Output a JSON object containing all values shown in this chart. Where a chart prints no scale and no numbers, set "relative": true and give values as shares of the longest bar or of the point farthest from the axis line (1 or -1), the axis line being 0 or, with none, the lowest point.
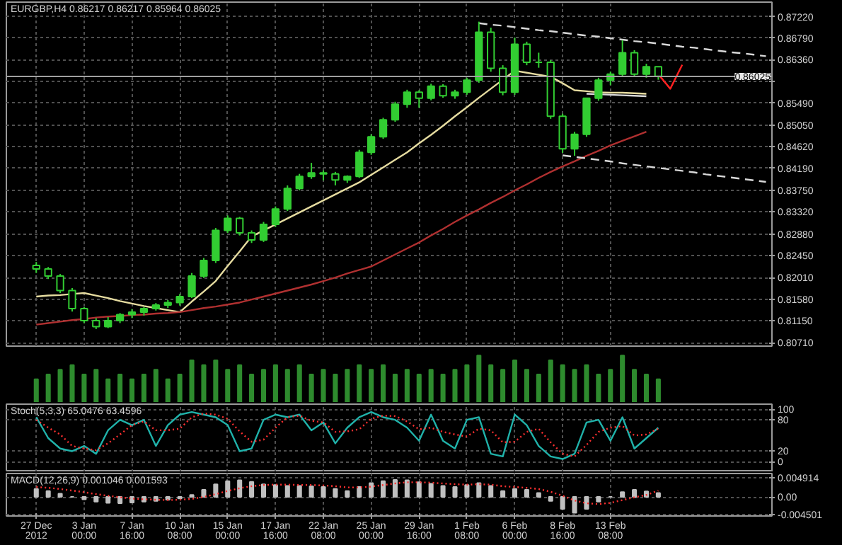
{
  "chart_data": [
    {
      "type": "candlestick",
      "title": "EURGBP,H4 0.86217 0.86217 0.85964 0.86025",
      "color": "#32cd32",
      "categories": [
        null,
        null,
        null,
        null,
        null,
        null,
        null,
        null,
        null,
        null,
        null,
        null,
        null,
        null,
        null,
        null,
        null,
        null,
        null,
        null,
        null,
        null,
        null,
        null,
        null,
        null,
        null,
        null,
        null,
        null,
        null,
        null,
        null,
        null,
        null,
        null,
        null,
        null,
        null,
        null,
        null,
        null,
        null,
        null,
        null,
        null,
        null,
        null,
        null,
        null,
        null,
        null,
        null,
        null,
        null,
        null,
        null,
        null,
        null,
        null,
        null,
        null
      ],
      "ohlc": [
        [
          0.8225,
          0.8232,
          0.821,
          0.8218
        ],
        [
          0.8218,
          0.8222,
          0.8198,
          0.8204
        ],
        [
          0.8204,
          0.8208,
          0.817,
          0.8175
        ],
        [
          0.8175,
          0.818,
          0.8133,
          0.8139
        ],
        [
          0.8139,
          0.8142,
          0.811,
          0.8115
        ],
        [
          0.8115,
          0.812,
          0.8098,
          0.8103
        ],
        [
          0.8103,
          0.8122,
          0.81,
          0.8115
        ],
        [
          0.8115,
          0.813,
          0.811,
          0.8127
        ],
        [
          0.8127,
          0.8138,
          0.812,
          0.8132
        ],
        [
          0.8132,
          0.8142,
          0.8125,
          0.8139
        ],
        [
          0.8139,
          0.815,
          0.8135,
          0.8146
        ],
        [
          0.8146,
          0.8156,
          0.814,
          0.8151
        ],
        [
          0.8151,
          0.8168,
          0.8145,
          0.8163
        ],
        [
          0.8163,
          0.821,
          0.816,
          0.8204
        ],
        [
          0.8204,
          0.824,
          0.82,
          0.8235
        ],
        [
          0.8235,
          0.83,
          0.823,
          0.8295
        ],
        [
          0.8295,
          0.8325,
          0.829,
          0.8319
        ],
        [
          0.8319,
          0.8322,
          0.8285,
          0.829
        ],
        [
          0.829,
          0.8295,
          0.827,
          0.8276
        ],
        [
          0.8276,
          0.8312,
          0.8272,
          0.8307
        ],
        [
          0.8307,
          0.8343,
          0.8302,
          0.8338
        ],
        [
          0.8338,
          0.8385,
          0.8334,
          0.8379
        ],
        [
          0.8379,
          0.8408,
          0.8375,
          0.8403
        ],
        [
          0.8403,
          0.843,
          0.8398,
          0.841
        ],
        [
          0.841,
          0.8415,
          0.8395,
          0.8408
        ],
        [
          0.8408,
          0.8412,
          0.8385,
          0.8396
        ],
        [
          0.8396,
          0.8405,
          0.839,
          0.8403
        ],
        [
          0.8403,
          0.8456,
          0.84,
          0.8451
        ],
        [
          0.8451,
          0.8487,
          0.8446,
          0.8482
        ],
        [
          0.8482,
          0.852,
          0.8478,
          0.8516
        ],
        [
          0.8516,
          0.8552,
          0.8512,
          0.8547
        ],
        [
          0.8547,
          0.8576,
          0.854,
          0.8571
        ],
        [
          0.8571,
          0.8575,
          0.854,
          0.8559
        ],
        [
          0.8559,
          0.8588,
          0.8555,
          0.8583
        ],
        [
          0.8583,
          0.8587,
          0.856,
          0.8564
        ],
        [
          0.8564,
          0.8576,
          0.8558,
          0.8571
        ],
        [
          0.8571,
          0.86,
          0.8566,
          0.8595
        ],
        [
          0.8595,
          0.8712,
          0.859,
          0.8691
        ],
        [
          0.8691,
          0.87,
          0.8612,
          0.8619
        ],
        [
          0.8619,
          0.8625,
          0.8565,
          0.8571
        ],
        [
          0.8571,
          0.868,
          0.8566,
          0.8667
        ],
        [
          0.8667,
          0.8672,
          0.8625,
          0.8631
        ],
        [
          0.8631,
          0.865,
          0.862,
          0.8631
        ],
        [
          0.8631,
          0.8635,
          0.8518,
          0.8523
        ],
        [
          0.8523,
          0.8528,
          0.845,
          0.8458
        ],
        [
          0.8458,
          0.8492,
          0.8444,
          0.8487
        ],
        [
          0.8487,
          0.856,
          0.8482,
          0.8559
        ],
        [
          0.8559,
          0.86,
          0.8554,
          0.8595
        ],
        [
          0.8595,
          0.8612,
          0.8585,
          0.8607
        ],
        [
          0.8607,
          0.8675,
          0.8602,
          0.865
        ],
        [
          0.865,
          0.8655,
          0.8603,
          0.8607
        ],
        [
          0.8607,
          0.8628,
          0.86,
          0.8622
        ],
        [
          0.8622,
          0.8622,
          0.8596,
          0.8603
        ],
        null,
        null,
        null,
        null,
        null,
        null,
        null,
        null,
        null
      ],
      "series": [
        {
          "type": "line",
          "color": "#e6dca0",
          "values": [
            0.8163,
            0.8165,
            0.8166,
            0.8168,
            0.817,
            0.8165,
            0.816,
            0.8154,
            0.8149,
            0.8144,
            0.814,
            0.8136,
            0.8132,
            0.8153,
            0.8173,
            0.8194,
            0.8224,
            0.8253,
            0.8283,
            0.8295,
            0.8307,
            0.8319,
            0.8331,
            0.8343,
            0.8355,
            0.8367,
            0.8379,
            0.8391,
            0.8406,
            0.8421,
            0.8436,
            0.8451,
            0.8469,
            0.8486,
            0.8504,
            0.8523,
            0.8541,
            0.856,
            0.8578,
            0.8596,
            0.8614,
            0.861,
            0.8606,
            0.8602,
            0.8589,
            0.8575,
            0.8573,
            0.8571,
            0.857,
            0.857,
            0.8569,
            0.8568,
            null,
            null,
            null,
            null,
            null,
            null,
            null,
            null,
            null,
            null
          ]
        },
        {
          "type": "line",
          "color": "#b03030",
          "values": [
            0.8107,
            0.811,
            0.8113,
            0.8116,
            0.8118,
            0.8121,
            0.8123,
            0.8124,
            0.8126,
            0.8127,
            0.8129,
            0.813,
            0.8132,
            0.8136,
            0.814,
            0.8143,
            0.8147,
            0.8151,
            0.8157,
            0.8163,
            0.8169,
            0.8175,
            0.8181,
            0.8187,
            0.8194,
            0.8201,
            0.8209,
            0.8216,
            0.8223,
            0.8235,
            0.8247,
            0.8259,
            0.8271,
            0.8285,
            0.8298,
            0.8312,
            0.8325,
            0.8337,
            0.835,
            0.8362,
            0.8375,
            0.8387,
            0.84,
            0.8412,
            0.8423,
            0.8433,
            0.8444,
            0.8454,
            0.8465,
            0.8474,
            0.8483,
            0.8492,
            null,
            null,
            null,
            null,
            null,
            null,
            null,
            null,
            null,
            null
          ]
        },
        {
          "type": "line",
          "color": "#d8d8d8",
          "line_style": "dashed",
          "values": [
            null,
            null,
            null,
            null,
            null,
            null,
            null,
            null,
            null,
            null,
            null,
            null,
            null,
            null,
            null,
            null,
            null,
            null,
            null,
            null,
            null,
            null,
            null,
            null,
            null,
            null,
            null,
            null,
            null,
            null,
            null,
            null,
            null,
            null,
            null,
            null,
            null,
            0.8709,
            0.8706,
            0.8704,
            0.8701,
            0.8698,
            0.8695,
            0.8693,
            0.869,
            0.8687,
            0.8684,
            0.8682,
            0.8679,
            0.8676,
            0.8673,
            0.8671,
            0.8668,
            0.8665,
            0.8662,
            0.866,
            0.8657,
            0.8654,
            0.8651,
            0.8649,
            0.8646,
            0.8643
          ]
        },
        {
          "type": "line",
          "color": "#d8d8d8",
          "line_style": "dashed",
          "values": [
            null,
            null,
            null,
            null,
            null,
            null,
            null,
            null,
            null,
            null,
            null,
            null,
            null,
            null,
            null,
            null,
            null,
            null,
            null,
            null,
            null,
            null,
            null,
            null,
            null,
            null,
            null,
            null,
            null,
            null,
            null,
            null,
            null,
            null,
            null,
            null,
            null,
            null,
            null,
            null,
            null,
            null,
            null,
            null,
            0.8445,
            0.8442,
            0.8439,
            0.8436,
            0.8433,
            0.8429,
            0.8426,
            0.8423,
            0.842,
            0.8417,
            0.8414,
            0.8411,
            0.8407,
            0.8404,
            0.8401,
            0.8398,
            0.8395,
            0.8392
          ]
        },
        {
          "type": "line",
          "color": "#d8d8d8",
          "values": [
            null,
            null,
            null,
            null,
            null,
            null,
            null,
            null,
            null,
            null,
            null,
            null,
            null,
            null,
            null,
            null,
            null,
            null,
            null,
            null,
            null,
            null,
            null,
            null,
            null,
            null,
            null,
            null,
            null,
            null,
            null,
            null,
            null,
            null,
            null,
            null,
            null,
            null,
            null,
            null,
            null,
            null,
            null,
            null,
            null,
            null,
            0.8568,
            0.8567,
            0.8566,
            0.8565,
            0.8564,
            0.8563,
            null,
            null,
            null,
            null,
            null,
            null,
            null,
            null,
            null,
            null
          ]
        },
        {
          "type": "line",
          "color": "#ff2020",
          "values": [
            null,
            null,
            null,
            null,
            null,
            null,
            null,
            null,
            null,
            null,
            null,
            null,
            null,
            null,
            null,
            null,
            null,
            null,
            null,
            null,
            null,
            null,
            null,
            null,
            null,
            null,
            null,
            null,
            null,
            null,
            null,
            null,
            null,
            null,
            null,
            null,
            null,
            null,
            null,
            null,
            null,
            null,
            null,
            null,
            null,
            null,
            null,
            null,
            null,
            null,
            null,
            null,
            0.8607,
            0.8578,
            0.8626,
            null,
            null,
            null,
            null,
            null,
            null,
            null
          ]
        }
      ],
      "ylim": [
        0.8064,
        0.8751
      ],
      "yticks": [
        {
          "value": 0.8722,
          "label": "0.87220"
        },
        {
          "value": 0.8679,
          "label": "0.86790"
        },
        {
          "value": 0.8636,
          "label": "0.86360"
        },
        {
          "value": 0.8592,
          "label": null
        },
        {
          "value": 0.8549,
          "label": "0.85490"
        },
        {
          "value": 0.8505,
          "label": "0.85050"
        },
        {
          "value": 0.8462,
          "label": "0.84620"
        },
        {
          "value": 0.8419,
          "label": "0.84190"
        },
        {
          "value": 0.8375,
          "label": "0.83750"
        },
        {
          "value": 0.8332,
          "label": "0.83320"
        },
        {
          "value": 0.8288,
          "label": "0.82880"
        },
        {
          "value": 0.8245,
          "label": "0.82450"
        },
        {
          "value": 0.8201,
          "label": "0.82010"
        },
        {
          "value": 0.8158,
          "label": "0.81580"
        },
        {
          "value": 0.8115,
          "label": "0.81150"
        },
        {
          "value": 0.8071,
          "label": "0.80710"
        }
      ],
      "ref_lines": [
        {
          "axis": "y",
          "value": 0.86025,
          "label": "0.86025",
          "color": "#a0a0a0"
        }
      ],
      "grid": true,
      "tick_labels": "y"
    },
    {
      "type": "bar",
      "relative": true,
      "color": "#2e8b2e",
      "categories": [
        null,
        null,
        null,
        null,
        null,
        null,
        null,
        null,
        null,
        null,
        null,
        null,
        null,
        null,
        null,
        null,
        null,
        null,
        null,
        null,
        null,
        null,
        null,
        null,
        null,
        null,
        null,
        null,
        null,
        null,
        null,
        null,
        null,
        null,
        null,
        null,
        null,
        null,
        null,
        null,
        null,
        null,
        null,
        null,
        null,
        null,
        null,
        null,
        null,
        null,
        null,
        null,
        null,
        null,
        null,
        null,
        null,
        null,
        null,
        null,
        null,
        null
      ],
      "values": [
        0.5,
        0.6,
        0.7,
        0.8,
        0.6,
        0.7,
        0.5,
        0.6,
        0.5,
        0.6,
        0.7,
        0.5,
        0.6,
        0.9,
        0.8,
        0.9,
        0.7,
        0.8,
        0.6,
        0.7,
        0.8,
        0.7,
        0.8,
        0.6,
        0.7,
        0.6,
        0.7,
        0.8,
        0.7,
        0.8,
        0.6,
        0.7,
        0.6,
        0.7,
        0.6,
        0.7,
        0.8,
        1.0,
        0.8,
        0.7,
        0.9,
        0.7,
        0.6,
        0.9,
        0.8,
        0.7,
        0.8,
        0.6,
        0.7,
        1.0,
        0.7,
        0.6,
        0.5,
        null,
        null,
        null,
        null,
        null,
        null,
        null,
        null,
        null
      ],
      "tick_labels": false
    },
    {
      "type": "line",
      "title": "Stoch(5,3,3) 65.0476 63.4596",
      "categories": [
        null,
        null,
        null,
        null,
        null,
        null,
        null,
        null,
        null,
        null,
        null,
        null,
        null,
        null,
        null,
        null,
        null,
        null,
        null,
        null,
        null,
        null,
        null,
        null,
        null,
        null,
        null,
        null,
        null,
        null,
        null,
        null,
        null,
        null,
        null,
        null,
        null,
        null,
        null,
        null,
        null,
        null,
        null,
        null,
        null,
        null,
        null,
        null,
        null,
        null,
        null,
        null,
        null,
        null,
        null,
        null,
        null,
        null,
        null,
        null,
        null,
        null
      ],
      "series": [
        {
          "color": "#20b2aa",
          "values": [
            85,
            45,
            25,
            20,
            30,
            15,
            60,
            80,
            70,
            80,
            30,
            70,
            90,
            95,
            90,
            85,
            70,
            20,
            25,
            80,
            90,
            85,
            90,
            60,
            75,
            35,
            65,
            85,
            95,
            85,
            80,
            65,
            40,
            90,
            40,
            25,
            80,
            85,
            15,
            10,
            90,
            70,
            30,
            10,
            5,
            15,
            75,
            80,
            40,
            85,
            25,
            45,
            65,
            null,
            null,
            null,
            null,
            null,
            null,
            null,
            null,
            null
          ]
        },
        {
          "color": "#ff3030",
          "line_style": "dotted",
          "values": [
            80,
            65,
            52,
            30,
            25,
            22,
            35,
            52,
            70,
            77,
            60,
            60,
            63,
            85,
            92,
            90,
            82,
            58,
            38,
            42,
            65,
            85,
            88,
            78,
            75,
            57,
            58,
            62,
            82,
            88,
            87,
            77,
            62,
            65,
            57,
            52,
            48,
            63,
            60,
            37,
            38,
            57,
            63,
            37,
            15,
            10,
            32,
            57,
            65,
            68,
            50,
            52,
            63,
            null,
            null,
            null,
            null,
            null,
            null,
            null,
            null,
            null
          ]
        }
      ],
      "ylim": [
        -20,
        110
      ],
      "yticks": [
        100,
        80,
        20,
        0
      ],
      "grid": true,
      "tick_labels": "y"
    },
    {
      "type": "bar",
      "title": "MACD(12,26,9) 0.001046 0.001593",
      "categories": [
        "27 Dec 2012",
        null,
        null,
        null,
        "3 Jan 00:00",
        null,
        null,
        null,
        "7 Jan 16:00",
        null,
        null,
        null,
        "10 Jan 08:00",
        null,
        null,
        null,
        "15 Jan 00:00",
        null,
        null,
        null,
        "17 Jan 16:00",
        null,
        null,
        null,
        "22 Jan 08:00",
        null,
        null,
        null,
        "25 Jan 00:00",
        null,
        null,
        null,
        "29 Jan 16:00",
        null,
        null,
        null,
        "1 Feb 08:00",
        null,
        null,
        null,
        "6 Feb 00:00",
        null,
        null,
        null,
        "8 Feb 16:00",
        null,
        null,
        null,
        "13 Feb 08:00",
        null,
        null,
        null,
        null,
        null,
        null,
        null,
        null,
        null,
        null,
        null,
        null,
        null
      ],
      "series": [
        {
          "type": "bar",
          "color": "#c0c0c0",
          "values": [
            0.002,
            0.0015,
            0.0008,
            0.0,
            -0.0006,
            -0.0012,
            -0.0015,
            -0.0016,
            -0.0014,
            -0.0012,
            -0.001,
            -0.0007,
            -0.0004,
            0.0005,
            0.0018,
            0.0032,
            0.004,
            0.0042,
            0.0038,
            0.0032,
            0.003,
            0.0028,
            0.0028,
            0.0027,
            0.0025,
            0.002,
            0.0015,
            0.0025,
            0.0035,
            0.004,
            0.0043,
            0.0042,
            0.0037,
            0.0033,
            0.0028,
            0.0025,
            0.003,
            0.0035,
            0.0028,
            0.0015,
            0.002,
            0.0018,
            0.001,
            -0.001,
            -0.003,
            -0.004,
            -0.003,
            -0.0012,
            0.0,
            0.0012,
            0.0018,
            0.0014,
            0.001,
            null,
            null,
            null,
            null,
            null,
            null,
            null,
            null,
            null
          ]
        },
        {
          "type": "line",
          "color": "#ff3030",
          "line_style": "dotted",
          "values": [
            0.0025,
            0.0023,
            0.002,
            0.0016,
            0.0012,
            0.0007,
            0.0003,
            -0.0001,
            -0.0004,
            -0.0006,
            -0.0007,
            -0.0008,
            -0.0007,
            -0.0005,
            0.0,
            0.0007,
            0.0015,
            0.0022,
            0.0027,
            0.003,
            0.0031,
            0.0031,
            0.003,
            0.003,
            0.0029,
            0.0027,
            0.0024,
            0.0024,
            0.0026,
            0.003,
            0.0034,
            0.0037,
            0.0037,
            0.0036,
            0.0034,
            0.0032,
            0.0031,
            0.0032,
            0.0031,
            0.0027,
            0.0025,
            0.0023,
            0.002,
            0.0013,
            0.0003,
            -0.0009,
            -0.0016,
            -0.0018,
            -0.0015,
            -0.0008,
            -0.0001,
            0.0005,
            0.0016,
            null,
            null,
            null,
            null,
            null,
            null,
            null,
            null,
            null
          ]
        }
      ],
      "ylim": [
        -0.0048,
        0.0059
      ],
      "yticks": [
        {
          "value": 0.004914,
          "label": "0.004914"
        },
        {
          "value": 0,
          "label": "0.00"
        },
        {
          "value": -0.004501,
          "label": "-0.004501"
        }
      ],
      "grid": true
    }
  ]
}
